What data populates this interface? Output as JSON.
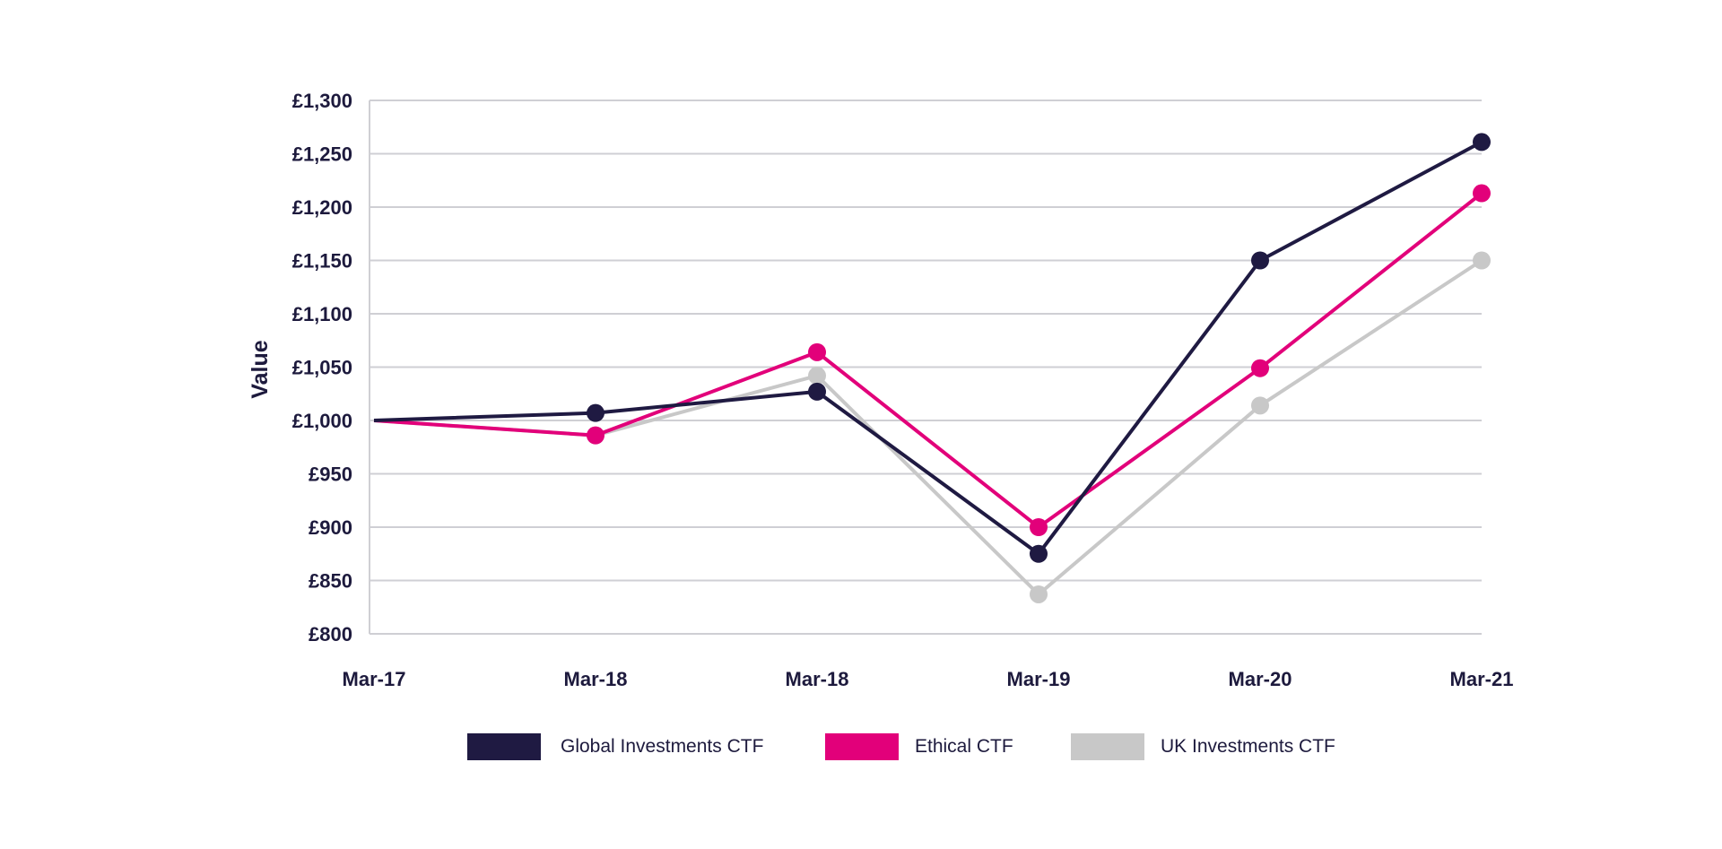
{
  "chart_data": {
    "type": "line",
    "title": "",
    "xlabel": "",
    "ylabel": "Value",
    "categories": [
      "Mar-17",
      "Mar-18",
      "Mar-18",
      "Mar-19",
      "Mar-20",
      "Mar-21"
    ],
    "ylim": [
      800,
      1300
    ],
    "yticks": [
      800,
      850,
      900,
      950,
      1000,
      1050,
      1100,
      1150,
      1200,
      1250,
      1300
    ],
    "ytick_labels": [
      "£800",
      "£850",
      "£900",
      "£950",
      "£1,000",
      "£1,050",
      "£1,100",
      "£1,150",
      "£1,200",
      "£1,250",
      "£1,300"
    ],
    "grid": true,
    "legend_position": "bottom",
    "series": [
      {
        "name": "UK Investments CTF",
        "color": "#c8c8c8",
        "values": [
          1000,
          986,
          1042,
          837,
          1014,
          1150
        ]
      },
      {
        "name": "Ethical CTF",
        "color": "#e2007a",
        "values": [
          1000,
          986,
          1064,
          900,
          1049,
          1213
        ]
      },
      {
        "name": "Global Investments CTF",
        "color": "#1f1a42",
        "values": [
          1000,
          1007,
          1027,
          875,
          1150,
          1261
        ]
      }
    ],
    "legend": [
      {
        "name": "Global Investments CTF",
        "color": "#1f1a42"
      },
      {
        "name": "Ethical CTF",
        "color": "#e2007a"
      },
      {
        "name": "UK Investments CTF",
        "color": "#c8c8c8"
      }
    ]
  }
}
